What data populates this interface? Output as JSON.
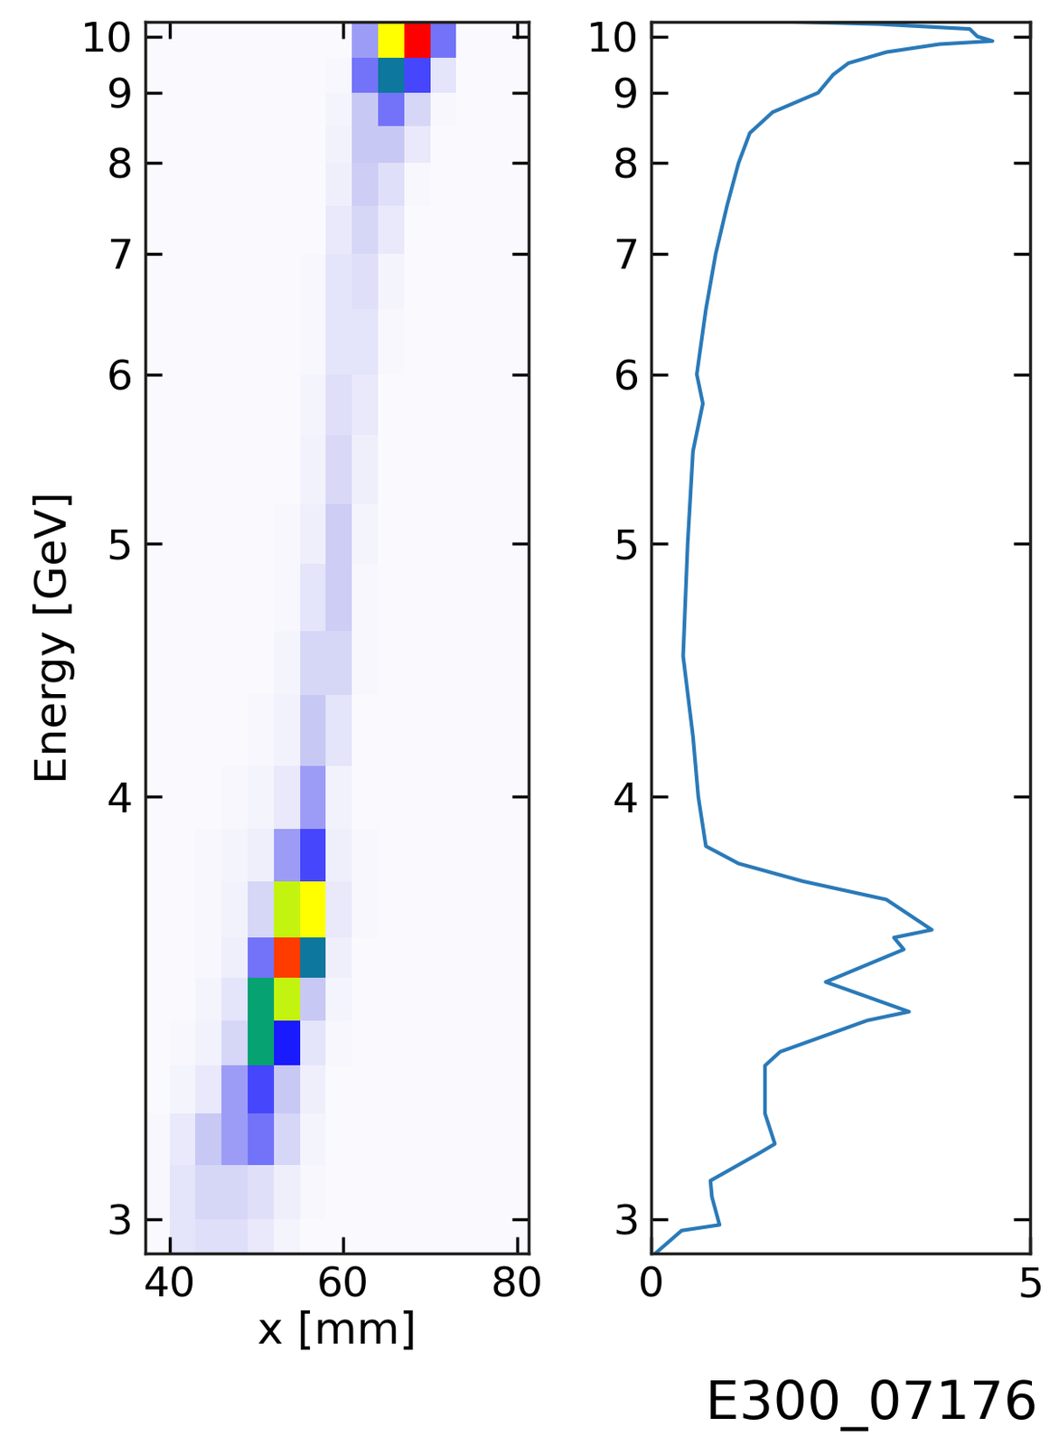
{
  "chart_data": [
    {
      "type": "heatmap",
      "xlabel": "x [mm]",
      "ylabel": "Energy [GeV]",
      "xlim": [
        37.2,
        81.3
      ],
      "xticks": [
        40,
        60,
        80
      ],
      "ylim": [
        2.94,
        10.3
      ],
      "yticks": [
        3,
        4,
        5,
        6,
        7,
        8,
        9,
        10
      ],
      "clim": [
        0,
        1
      ],
      "x_edges": [
        37,
        40,
        43,
        46,
        49,
        52,
        55,
        58,
        61,
        64,
        67,
        70,
        73,
        76,
        79,
        82
      ],
      "y_edges": [
        10.3,
        9.6,
        9.0,
        8.5,
        8.0,
        7.5,
        7.0,
        6.5,
        6.0,
        5.6,
        5.2,
        4.9,
        4.6,
        4.35,
        4.1,
        3.9,
        3.75,
        3.6,
        3.5,
        3.4,
        3.3,
        3.2,
        3.1,
        3.0,
        2.94
      ],
      "cells": [
        [
          0.02,
          0.02,
          0.02,
          0.02,
          0.02,
          0.02,
          0.02,
          0.02,
          0.25,
          0.8,
          1.0,
          0.3,
          0.02,
          0.02,
          0.02
        ],
        [
          0.02,
          0.02,
          0.02,
          0.02,
          0.02,
          0.02,
          0.02,
          0.03,
          0.3,
          0.5,
          0.35,
          0.1,
          0.02,
          0.02,
          0.02
        ],
        [
          0.02,
          0.02,
          0.02,
          0.02,
          0.02,
          0.02,
          0.02,
          0.04,
          0.2,
          0.3,
          0.15,
          0.03,
          0.02,
          0.02,
          0.02
        ],
        [
          0.02,
          0.02,
          0.02,
          0.02,
          0.02,
          0.02,
          0.02,
          0.05,
          0.2,
          0.2,
          0.08,
          0.02,
          0.02,
          0.02,
          0.02
        ],
        [
          0.02,
          0.02,
          0.02,
          0.02,
          0.02,
          0.02,
          0.02,
          0.06,
          0.18,
          0.12,
          0.03,
          0.02,
          0.02,
          0.02,
          0.02
        ],
        [
          0.02,
          0.02,
          0.02,
          0.02,
          0.02,
          0.02,
          0.02,
          0.08,
          0.15,
          0.08,
          0.02,
          0.02,
          0.02,
          0.02,
          0.02
        ],
        [
          0.02,
          0.02,
          0.02,
          0.02,
          0.02,
          0.02,
          0.03,
          0.1,
          0.12,
          0.04,
          0.02,
          0.02,
          0.02,
          0.02,
          0.02
        ],
        [
          0.02,
          0.02,
          0.02,
          0.02,
          0.02,
          0.02,
          0.03,
          0.1,
          0.1,
          0.03,
          0.02,
          0.02,
          0.02,
          0.02,
          0.02
        ],
        [
          0.02,
          0.02,
          0.02,
          0.02,
          0.02,
          0.02,
          0.04,
          0.12,
          0.08,
          0.02,
          0.02,
          0.02,
          0.02,
          0.02,
          0.02
        ],
        [
          0.02,
          0.02,
          0.02,
          0.02,
          0.02,
          0.02,
          0.05,
          0.14,
          0.06,
          0.02,
          0.02,
          0.02,
          0.02,
          0.02,
          0.02
        ],
        [
          0.02,
          0.02,
          0.02,
          0.02,
          0.02,
          0.03,
          0.06,
          0.18,
          0.04,
          0.02,
          0.02,
          0.02,
          0.02,
          0.02,
          0.02
        ],
        [
          0.02,
          0.02,
          0.02,
          0.02,
          0.02,
          0.03,
          0.1,
          0.18,
          0.03,
          0.02,
          0.02,
          0.02,
          0.02,
          0.02,
          0.02
        ],
        [
          0.02,
          0.02,
          0.02,
          0.02,
          0.02,
          0.04,
          0.15,
          0.15,
          0.03,
          0.02,
          0.02,
          0.02,
          0.02,
          0.02,
          0.02
        ],
        [
          0.02,
          0.02,
          0.02,
          0.02,
          0.03,
          0.05,
          0.2,
          0.1,
          0.02,
          0.02,
          0.02,
          0.02,
          0.02,
          0.02,
          0.02
        ],
        [
          0.02,
          0.02,
          0.02,
          0.03,
          0.04,
          0.08,
          0.25,
          0.05,
          0.02,
          0.02,
          0.02,
          0.02,
          0.02,
          0.02,
          0.02
        ],
        [
          0.02,
          0.02,
          0.03,
          0.04,
          0.06,
          0.25,
          0.35,
          0.06,
          0.03,
          0.02,
          0.02,
          0.02,
          0.02,
          0.02,
          0.02
        ],
        [
          0.02,
          0.02,
          0.03,
          0.05,
          0.15,
          0.75,
          0.8,
          0.08,
          0.03,
          0.02,
          0.02,
          0.02,
          0.02,
          0.02,
          0.02
        ],
        [
          0.02,
          0.02,
          0.03,
          0.06,
          0.3,
          0.95,
          0.5,
          0.06,
          0.02,
          0.02,
          0.02,
          0.02,
          0.02,
          0.02,
          0.02
        ],
        [
          0.02,
          0.02,
          0.04,
          0.1,
          0.55,
          0.75,
          0.2,
          0.04,
          0.02,
          0.02,
          0.02,
          0.02,
          0.02,
          0.02,
          0.02
        ],
        [
          0.02,
          0.03,
          0.05,
          0.15,
          0.55,
          0.4,
          0.1,
          0.03,
          0.02,
          0.02,
          0.02,
          0.02,
          0.02,
          0.02,
          0.02
        ],
        [
          0.02,
          0.04,
          0.08,
          0.25,
          0.35,
          0.2,
          0.06,
          0.02,
          0.02,
          0.02,
          0.02,
          0.02,
          0.02,
          0.02,
          0.02
        ],
        [
          0.03,
          0.08,
          0.2,
          0.25,
          0.3,
          0.15,
          0.04,
          0.02,
          0.02,
          0.02,
          0.02,
          0.02,
          0.02,
          0.02,
          0.02
        ],
        [
          0.03,
          0.1,
          0.15,
          0.15,
          0.12,
          0.06,
          0.03,
          0.02,
          0.02,
          0.02,
          0.02,
          0.02,
          0.02,
          0.02,
          0.02
        ],
        [
          0.02,
          0.1,
          0.12,
          0.12,
          0.08,
          0.04,
          0.02,
          0.02,
          0.02,
          0.02,
          0.02,
          0.02,
          0.02,
          0.02,
          0.02
        ]
      ]
    },
    {
      "type": "line",
      "annotation": "E300_07176",
      "color": "#2a7ab9",
      "xlim": [
        0,
        5
      ],
      "xticks": [
        0,
        5
      ],
      "ylim": [
        2.94,
        10.3
      ],
      "yticks": [
        3,
        4,
        5,
        6,
        7,
        8,
        9,
        10
      ],
      "y": [
        10.3,
        10.25,
        10.15,
        10.0,
        9.91,
        9.85,
        9.7,
        9.5,
        9.3,
        9.0,
        8.7,
        8.4,
        8.0,
        7.5,
        7.0,
        6.5,
        6.0,
        5.8,
        5.5,
        5.0,
        4.5,
        4.2,
        4.0,
        3.85,
        3.8,
        3.75,
        3.7,
        3.62,
        3.6,
        3.57,
        3.49,
        3.42,
        3.4,
        3.33,
        3.3,
        3.2,
        3.14,
        3.12,
        3.07,
        3.04,
        2.99,
        2.98,
        2.94
      ],
      "x": [
        1.8,
        3.0,
        4.2,
        4.3,
        4.5,
        3.8,
        3.1,
        2.6,
        2.4,
        2.2,
        1.6,
        1.3,
        1.15,
        1.0,
        0.85,
        0.72,
        0.6,
        0.68,
        0.55,
        0.48,
        0.42,
        0.55,
        0.62,
        0.72,
        1.15,
        2.0,
        3.1,
        3.7,
        3.2,
        3.33,
        2.3,
        3.4,
        2.85,
        1.7,
        1.5,
        1.5,
        1.63,
        1.4,
        0.78,
        0.8,
        0.9,
        0.4,
        0.05
      ]
    }
  ]
}
